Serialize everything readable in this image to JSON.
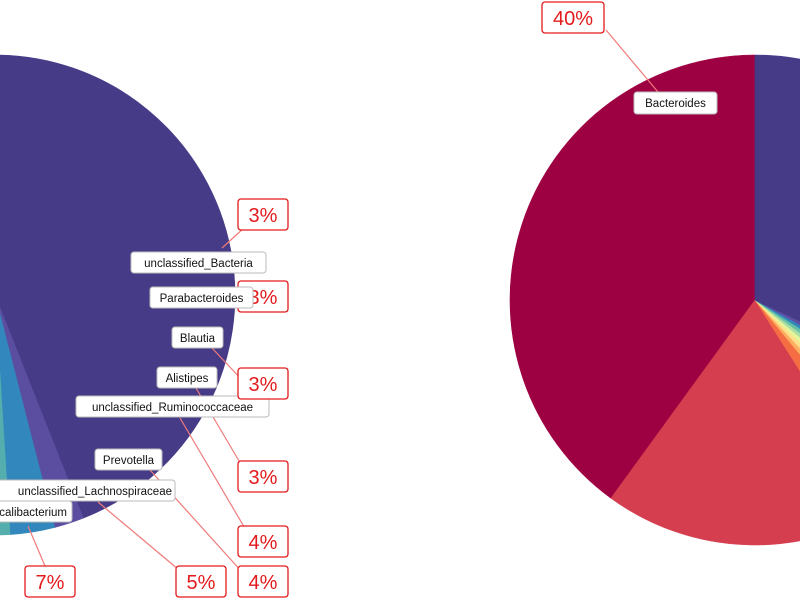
{
  "chart_data": [
    {
      "type": "pie",
      "title": "",
      "slices": [
        {
          "label": "",
          "value": 44.0,
          "color": "#463b87"
        },
        {
          "label": "",
          "value": 2.0,
          "color": "#5b4ea0"
        },
        {
          "label": "unclassified_Bacteria",
          "value": 3.0,
          "color": "#3288bd"
        },
        {
          "label": "",
          "value": 1.0,
          "color": "#54aead"
        },
        {
          "label": "",
          "value": 1.5,
          "color": "#66c2a5"
        },
        {
          "label": "Parabacteroides",
          "value": 3.0,
          "color": "#abdda4"
        },
        {
          "label": "Blautia",
          "value": 3.0,
          "color": "#e6f598"
        },
        {
          "label": "Alistipes",
          "value": 3.0,
          "color": "#ffffbf"
        },
        {
          "label": "unclassified_Ruminococcaceae",
          "value": 4.0,
          "color": "#fee08b"
        },
        {
          "label": "Prevotella",
          "value": 4.0,
          "color": "#fed08a"
        },
        {
          "label": "unclassified_Lachnospiraceae",
          "value": 5.0,
          "color": "#fdae61"
        },
        {
          "label": "Faecalibacterium",
          "value": 7.0,
          "color": "#f46d43"
        },
        {
          "label": "",
          "value": 19.5,
          "color": "#f06a43"
        }
      ],
      "annotations": [
        {
          "genus": "unclassified_Bacteria",
          "text": "3%"
        },
        {
          "genus": "Parabacteroides",
          "text": "3%"
        },
        {
          "genus": "Blautia",
          "text": "3%"
        },
        {
          "genus": "Alistipes",
          "text": "3%"
        },
        {
          "genus": "unclassified_Ruminococcaceae",
          "text": "4%"
        },
        {
          "genus": "Prevotella",
          "text": "4%"
        },
        {
          "genus": "unclassified_Lachnospiraceae",
          "text": "5%"
        },
        {
          "genus": "Faecalibacterium",
          "text": "7%"
        }
      ]
    },
    {
      "type": "pie",
      "title": "",
      "slices": [
        {
          "label": "Bacteroides",
          "value": 40.0,
          "color": "#9e0142"
        },
        {
          "label": "",
          "value": 19.0,
          "color": "#d53e4f"
        },
        {
          "label": "",
          "value": 2.0,
          "color": "#f46d43"
        },
        {
          "label": "",
          "value": 1.0,
          "color": "#fdae61"
        },
        {
          "label": "",
          "value": 1.0,
          "color": "#fee08b"
        },
        {
          "label": "",
          "value": 1.0,
          "color": "#e6f598"
        },
        {
          "label": "",
          "value": 1.0,
          "color": "#abdda4"
        },
        {
          "label": "",
          "value": 1.0,
          "color": "#66c2a5"
        },
        {
          "label": "",
          "value": 1.0,
          "color": "#3288bd"
        },
        {
          "label": "",
          "value": 1.0,
          "color": "#5e4fa2"
        },
        {
          "label": "",
          "value": 32.0,
          "color": "#463b87"
        }
      ],
      "annotations": [
        {
          "genus": "Bacteroides",
          "text": "40%"
        }
      ]
    }
  ]
}
